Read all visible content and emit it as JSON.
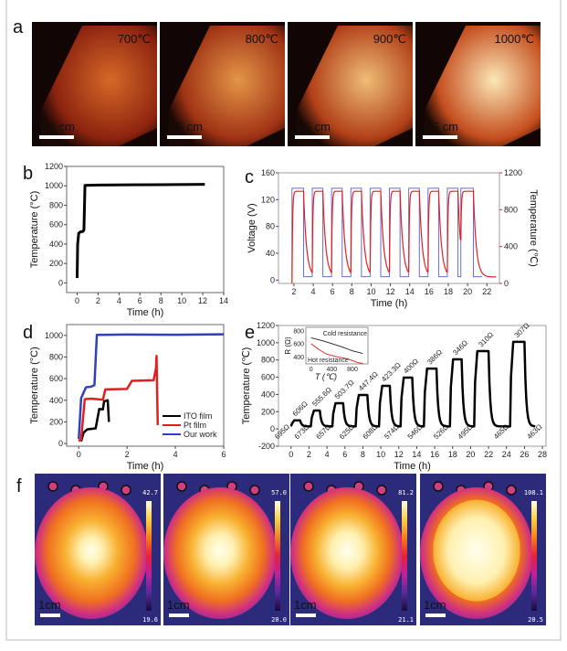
{
  "panel_letters": {
    "a": "a",
    "b": "b",
    "c": "c",
    "d": "d",
    "e": "e",
    "f": "f"
  },
  "panel_a": {
    "images": [
      {
        "temperature": "700℃",
        "scale": "0.5 cm",
        "brightness": 0.25
      },
      {
        "temperature": "800℃",
        "scale": "0.5 cm",
        "brightness": 0.5
      },
      {
        "temperature": "900℃",
        "scale": "0.5 cm",
        "brightness": 0.72
      },
      {
        "temperature": "1000℃",
        "scale": "0.5 cm",
        "brightness": 0.95
      }
    ]
  },
  "panel_f": {
    "images": [
      {
        "max": "42.7",
        "min": "19.6",
        "scale": "1cm",
        "hot": 0.35
      },
      {
        "max": "57.0",
        "min": "20.0",
        "scale": "1cm",
        "hot": 0.45
      },
      {
        "max": "81.2",
        "min": "21.1",
        "scale": "1cm",
        "hot": 0.5
      },
      {
        "max": "108.1",
        "min": "20.5",
        "scale": "1cm",
        "hot": 0.9
      }
    ],
    "colormap": [
      "#1a0a40",
      "#5a2a9a",
      "#c0209a",
      "#e8203a",
      "#f4801a",
      "#fbd040",
      "#ffffe8"
    ]
  },
  "chart_data": [
    {
      "panel": "b",
      "type": "line",
      "xlabel": "Time (h)",
      "ylabel": "Temperature (°C)",
      "xlim": [
        -1,
        14
      ],
      "ylim": [
        -100,
        1200
      ],
      "xticks": [
        0,
        2,
        4,
        6,
        8,
        10,
        12,
        14
      ],
      "yticks": [
        0,
        200,
        400,
        600,
        800,
        1000,
        1200
      ],
      "series": [
        {
          "color": "#000000",
          "x": [
            0,
            0.05,
            0.15,
            0.3,
            0.55,
            0.65,
            0.75,
            2,
            5,
            8,
            12.2
          ],
          "y": [
            50,
            400,
            510,
            525,
            530,
            545,
            1005,
            1008,
            1010,
            1012,
            1015
          ]
        }
      ]
    },
    {
      "panel": "c",
      "type": "line",
      "xlabel": "Time (h)",
      "ylabel": "Voltage (V)",
      "ylabel_right": "Temperature (℃)",
      "xlim": [
        0.4,
        23.3
      ],
      "ylim": [
        -5,
        160
      ],
      "ylim_right": [
        0,
        1200
      ],
      "xticks": [
        2,
        4,
        6,
        8,
        10,
        12,
        14,
        16,
        18,
        20,
        22
      ],
      "yticks": [
        0,
        40,
        80,
        120,
        160
      ],
      "yticks_right": [
        0,
        400,
        800,
        1200
      ],
      "voltage": {
        "color": "#6b6bd0",
        "high": 137,
        "low": 5,
        "on_intervals": [
          [
            1.8,
            3.0
          ],
          [
            3.9,
            5.0
          ],
          [
            5.9,
            7.0
          ],
          [
            7.9,
            9.0
          ],
          [
            9.9,
            11.0
          ],
          [
            11.9,
            13.0
          ],
          [
            13.9,
            15.0
          ],
          [
            15.9,
            17.0
          ],
          [
            17.9,
            19.0
          ],
          [
            19.3,
            20.6
          ]
        ]
      },
      "temperature": {
        "color": "#e02020",
        "peak": 1000,
        "base": 70
      }
    },
    {
      "panel": "d",
      "type": "line",
      "xlabel": "Time (h)",
      "ylabel": "Temperature (°C)",
      "xlim": [
        -0.5,
        6
      ],
      "ylim": [
        -25,
        1100
      ],
      "xticks": [
        0,
        2,
        4,
        6
      ],
      "yticks": [
        0,
        200,
        400,
        600,
        800,
        1000
      ],
      "legend": "bottom-right",
      "series": [
        {
          "name": "ITO film",
          "color": "#000000",
          "x": [
            0.1,
            0.2,
            0.35,
            0.7,
            0.85,
            1.0,
            1.05,
            1.2,
            1.25
          ],
          "y": [
            20,
            100,
            130,
            140,
            320,
            315,
            390,
            400,
            200
          ]
        },
        {
          "name": "Pt film",
          "color": "#e02020",
          "x": [
            0,
            0.1,
            0.25,
            0.5,
            1.0,
            1.1,
            2.0,
            2.2,
            3.1,
            3.2,
            3.22,
            3.27
          ],
          "y": [
            20,
            40,
            410,
            415,
            405,
            500,
            505,
            580,
            585,
            700,
            810,
            170
          ]
        },
        {
          "name": "Our work",
          "color": "#3040c0",
          "x": [
            0,
            0.1,
            0.3,
            0.5,
            0.65,
            0.75,
            2,
            4,
            6
          ],
          "y": [
            40,
            420,
            520,
            525,
            540,
            1005,
            1008,
            1006,
            1010
          ]
        }
      ]
    },
    {
      "panel": "e",
      "type": "line",
      "xlabel": "Time (h)",
      "ylabel": "Temperature (℃)",
      "xlim": [
        -1.4,
        28.4
      ],
      "ylim": [
        -200,
        1200
      ],
      "xticks": [
        0,
        2,
        4,
        6,
        8,
        10,
        12,
        14,
        16,
        18,
        20,
        22,
        24,
        26,
        28
      ],
      "yticks": [
        -200,
        0,
        200,
        400,
        600,
        800,
        1000,
        1200
      ],
      "color": "#000000",
      "label_color": "#3a3ac0",
      "cycles": [
        {
          "start": 0,
          "end": 1.0,
          "peak": 100,
          "hot_resistance": "606Ω",
          "cold_resistance": "695Ω"
        },
        {
          "start": 2.2,
          "end": 3.2,
          "peak": 213,
          "hot_resistance": "555.6Ω",
          "cold_resistance": "673Ω"
        },
        {
          "start": 4.6,
          "end": 5.8,
          "peak": 298,
          "hot_resistance": "503.7Ω",
          "cold_resistance": "657Ω"
        },
        {
          "start": 7.2,
          "end": 8.5,
          "peak": 394,
          "hot_resistance": "447.4Ω",
          "cold_resistance": "625Ω"
        },
        {
          "start": 9.8,
          "end": 11.0,
          "peak": 500,
          "hot_resistance": "423.3Ω",
          "cold_resistance": "608Ω"
        },
        {
          "start": 12.2,
          "end": 13.5,
          "peak": 595,
          "hot_resistance": "400Ω",
          "cold_resistance": "574Ω"
        },
        {
          "start": 14.8,
          "end": 16.2,
          "peak": 700,
          "hot_resistance": "386Ω",
          "cold_resistance": "546Ω"
        },
        {
          "start": 17.7,
          "end": 19.0,
          "peak": 808,
          "hot_resistance": "346Ω",
          "cold_resistance": "526Ω"
        },
        {
          "start": 20.4,
          "end": 22.0,
          "peak": 903,
          "hot_resistance": "310Ω",
          "cold_resistance": "495Ω"
        },
        {
          "start": 24.4,
          "end": 26.0,
          "peak": 1010,
          "hot_resistance": "307Ω",
          "cold_resistance": "465Ω"
        }
      ],
      "final_cold_resistance": "463Ω",
      "inset": {
        "xlabel": "T (℃)",
        "ylabel": "R (Ω)",
        "xlim": [
          -100,
          1100
        ],
        "ylim": [
          300,
          860
        ],
        "xticks": [
          0,
          400,
          800
        ],
        "yticks": [
          400,
          600,
          800
        ],
        "series": [
          {
            "name": "Cold resistance",
            "color": "#222222",
            "x": [
              0,
              200,
              400,
              600,
              800,
              1000
            ],
            "y": [
              700,
              660,
              610,
              560,
              500,
              460
            ]
          },
          {
            "name": "Hot resistance",
            "color": "#e02020",
            "x": [
              0,
              150,
              300,
              500,
              700,
              900,
              1000
            ],
            "y": [
              610,
              520,
              450,
              410,
              380,
              320,
              310
            ]
          }
        ]
      }
    }
  ]
}
